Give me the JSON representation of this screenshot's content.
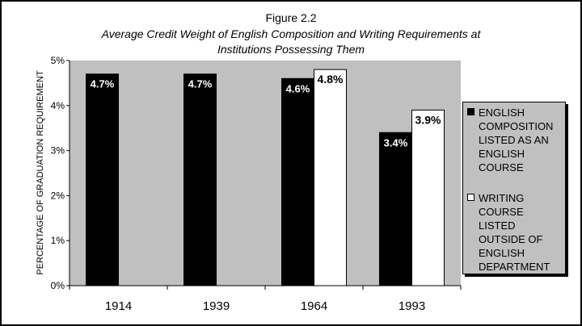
{
  "figure": {
    "title": "Figure 2.2",
    "subtitle_line1": "Average Credit Weight of English Composition and Writing Requirements at",
    "subtitle_line2": "Institutions Possessing Them"
  },
  "chart_data": {
    "type": "bar",
    "categories": [
      "1914",
      "1939",
      "1964",
      "1993"
    ],
    "series": [
      {
        "name": "ENGLISH COMPOSITION LISTED AS AN ENGLISH COURSE",
        "legend_lines": [
          "ENGLISH",
          "COMPOSITION",
          "LISTED AS AN",
          "ENGLISH",
          "COURSE"
        ],
        "color": "#000000",
        "values": [
          4.7,
          4.7,
          4.6,
          3.4
        ],
        "labels": [
          "4.7%",
          "4.7%",
          "4.6%",
          "3.4%"
        ]
      },
      {
        "name": "WRITING COURSE LISTED OUTSIDE OF ENGLISH DEPARTMENT",
        "legend_lines": [
          "WRITING",
          "COURSE",
          "LISTED",
          "OUTSIDE OF",
          "ENGLISH",
          "DEPARTMENT"
        ],
        "color": "#ffffff",
        "values": [
          null,
          null,
          4.8,
          3.9
        ],
        "labels": [
          null,
          null,
          "4.8%",
          "3.9%"
        ]
      }
    ],
    "ylabel": "PERCENTAGE OF GRADUATION REQUIREMENT",
    "xlabel": "",
    "ylim": [
      0,
      5
    ],
    "yticks": [
      "0%",
      "1%",
      "2%",
      "3%",
      "4%",
      "5%"
    ],
    "plot_background": "#c0c0c0",
    "grid": false,
    "legend_position": "right"
  }
}
